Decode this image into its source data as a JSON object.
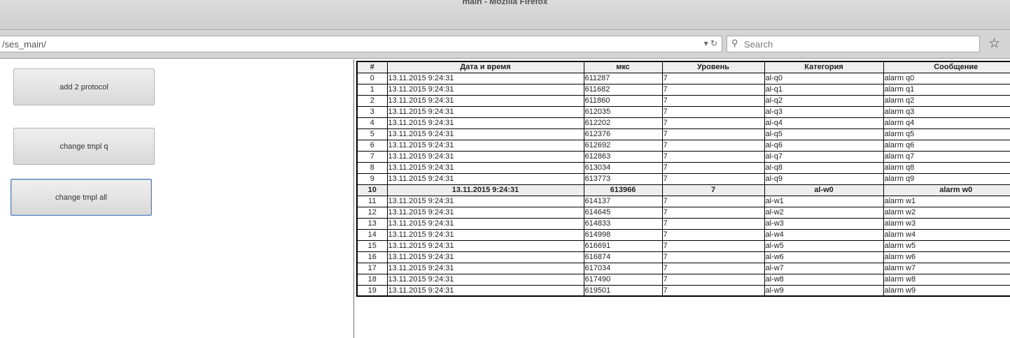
{
  "window": {
    "title": "main - Mozilla Firefox"
  },
  "toolbar": {
    "url": "/ses_main/",
    "search_placeholder": "Search"
  },
  "buttons": {
    "add_protocol": "add 2 protocol",
    "change_tmpl_q": "change tmpl q",
    "change_tmpl_all": "change tmpl all"
  },
  "table": {
    "headers": [
      "#",
      "Дата и время",
      "мкс",
      "Уровень",
      "Категория",
      "Сообщение"
    ],
    "highlighted_row": 10,
    "rows": [
      [
        "0",
        "13.11.2015 9:24:31",
        "611287",
        "7",
        "al-q0",
        "alarm q0"
      ],
      [
        "1",
        "13.11.2015 9:24:31",
        "611682",
        "7",
        "al-q1",
        "alarm q1"
      ],
      [
        "2",
        "13.11.2015 9:24:31",
        "611860",
        "7",
        "al-q2",
        "alarm q2"
      ],
      [
        "3",
        "13.11.2015 9:24:31",
        "612035",
        "7",
        "al-q3",
        "alarm q3"
      ],
      [
        "4",
        "13.11.2015 9:24:31",
        "612202",
        "7",
        "al-q4",
        "alarm q4"
      ],
      [
        "5",
        "13.11.2015 9:24:31",
        "612376",
        "7",
        "al-q5",
        "alarm q5"
      ],
      [
        "6",
        "13.11.2015 9:24:31",
        "612692",
        "7",
        "al-q6",
        "alarm q6"
      ],
      [
        "7",
        "13.11.2015 9:24:31",
        "612863",
        "7",
        "al-q7",
        "alarm q7"
      ],
      [
        "8",
        "13.11.2015 9:24:31",
        "613034",
        "7",
        "al-q8",
        "alarm q8"
      ],
      [
        "9",
        "13.11.2015 9:24:31",
        "613773",
        "7",
        "al-q9",
        "alarm q9"
      ],
      [
        "10",
        "13.11.2015 9:24:31",
        "613966",
        "7",
        "al-w0",
        "alarm w0"
      ],
      [
        "11",
        "13.11.2015 9:24:31",
        "614137",
        "7",
        "al-w1",
        "alarm w1"
      ],
      [
        "12",
        "13.11.2015 9:24:31",
        "614645",
        "7",
        "al-w2",
        "alarm w2"
      ],
      [
        "13",
        "13.11.2015 9:24:31",
        "614833",
        "7",
        "al-w3",
        "alarm w3"
      ],
      [
        "14",
        "13.11.2015 9:24:31",
        "614998",
        "7",
        "al-w4",
        "alarm w4"
      ],
      [
        "15",
        "13.11.2015 9:24:31",
        "616691",
        "7",
        "al-w5",
        "alarm w5"
      ],
      [
        "16",
        "13.11.2015 9:24:31",
        "616874",
        "7",
        "al-w6",
        "alarm w6"
      ],
      [
        "17",
        "13.11.2015 9:24:31",
        "617034",
        "7",
        "al-w7",
        "alarm w7"
      ],
      [
        "18",
        "13.11.2015 9:24:31",
        "617490",
        "7",
        "al-w8",
        "alarm w8"
      ],
      [
        "19",
        "13.11.2015 9:24:31",
        "619501",
        "7",
        "al-w9",
        "alarm w9"
      ]
    ]
  }
}
